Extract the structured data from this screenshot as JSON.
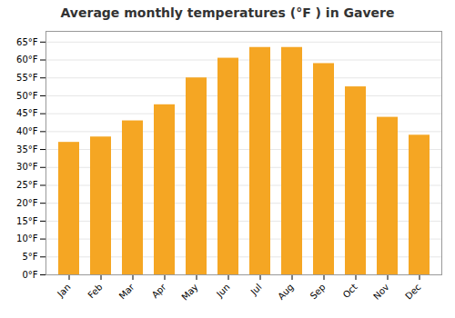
{
  "chart_data": {
    "type": "bar",
    "title": "Average monthly temperatures (°F ) in Gavere",
    "categories": [
      "Jan",
      "Feb",
      "Mar",
      "Apr",
      "May",
      "Jun",
      "Jul",
      "Aug",
      "Sep",
      "Oct",
      "Nov",
      "Dec"
    ],
    "values": [
      37,
      38.5,
      43,
      47.5,
      55,
      60.5,
      63.5,
      63.5,
      59,
      52.5,
      44,
      39
    ],
    "color": "#F5A623",
    "ylim": [
      0,
      68
    ],
    "yticks": [
      {
        "value": 0,
        "label": "0°F"
      },
      {
        "value": 5,
        "label": "5°F"
      },
      {
        "value": 10,
        "label": "10°F"
      },
      {
        "value": 15,
        "label": "15°F"
      },
      {
        "value": 20,
        "label": "20°F"
      },
      {
        "value": 25,
        "label": "25°F"
      },
      {
        "value": 30,
        "label": "30°F"
      },
      {
        "value": 35,
        "label": "35°F"
      },
      {
        "value": 40,
        "label": "40°F"
      },
      {
        "value": 45,
        "label": "45°F"
      },
      {
        "value": 50,
        "label": "50°F"
      },
      {
        "value": 55,
        "label": "55°F"
      },
      {
        "value": 60,
        "label": "60°F"
      },
      {
        "value": 65,
        "label": "65°F"
      }
    ],
    "grid": true
  }
}
